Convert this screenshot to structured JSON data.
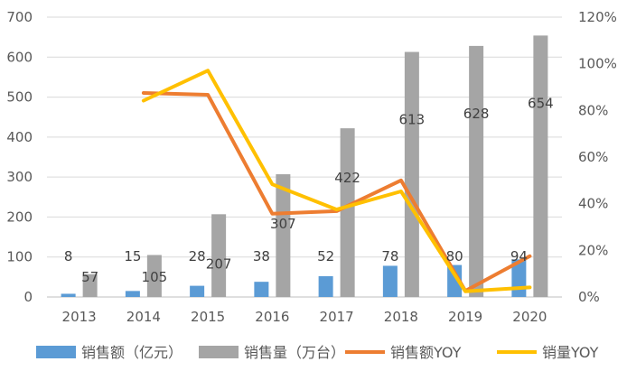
{
  "chart_data": {
    "type": "bar",
    "categories": [
      "2013",
      "2014",
      "2015",
      "2016",
      "2017",
      "2018",
      "2019",
      "2020"
    ],
    "series": [
      {
        "name": "销售额（亿元）",
        "type": "bar",
        "axis": "left",
        "color": "#5B9BD5",
        "values": [
          8,
          15,
          28,
          38,
          52,
          78,
          80,
          94
        ]
      },
      {
        "name": "销售量（万台）",
        "type": "bar",
        "axis": "left",
        "color": "#A5A5A5",
        "values": [
          57,
          105,
          207,
          307,
          422,
          613,
          628,
          654
        ]
      },
      {
        "name": "销售额YOY",
        "type": "line",
        "axis": "right",
        "color": "#ED7D31",
        "values": [
          null,
          0.875,
          0.867,
          0.357,
          0.368,
          0.5,
          0.026,
          0.175
        ]
      },
      {
        "name": "销量YOY",
        "type": "line",
        "axis": "right",
        "color": "#FFC000",
        "values": [
          null,
          0.842,
          0.971,
          0.483,
          0.375,
          0.453,
          0.024,
          0.041
        ]
      }
    ],
    "data_labels": [
      "8",
      "57",
      "15",
      "105",
      "28",
      "207",
      "38",
      "307",
      "52",
      "422",
      "78",
      "613",
      "80",
      "628",
      "94",
      "654"
    ],
    "y_left": {
      "min": 0,
      "max": 700,
      "ticks": [
        "0",
        "100",
        "200",
        "300",
        "400",
        "500",
        "600",
        "700"
      ]
    },
    "y_right": {
      "min": 0,
      "max": 1.2,
      "ticks": [
        "0%",
        "20%",
        "40%",
        "60%",
        "80%",
        "100%",
        "120%"
      ]
    },
    "grid": true,
    "legend_position": "bottom",
    "title": "",
    "xlabel": "",
    "ylabel": ""
  }
}
